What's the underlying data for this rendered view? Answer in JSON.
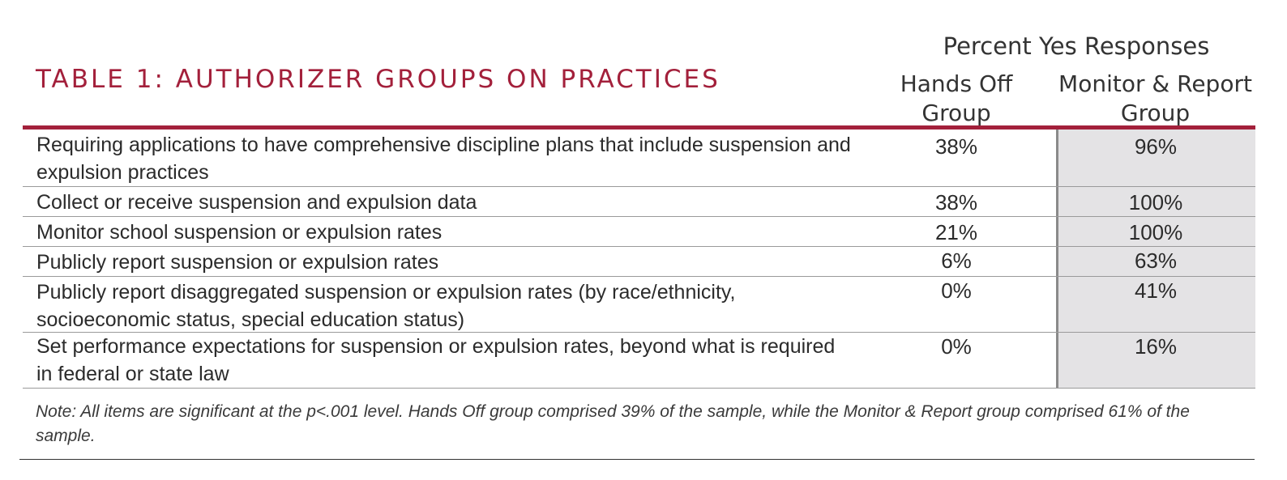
{
  "title": "TABLE 1: AUTHORIZER GROUPS ON PRACTICES",
  "header": {
    "super": "Percent Yes Responses",
    "col1": "Hands Off Group",
    "col2": "Monitor & Report Group"
  },
  "rows": [
    {
      "label": "Requiring applications to have comprehensive discipline plans that include suspension and expulsion practices",
      "hands_off": "38%",
      "monitor_report": "96%"
    },
    {
      "label": "Collect or receive suspension and expulsion data",
      "hands_off": "38%",
      "monitor_report": "100%"
    },
    {
      "label": "Monitor school suspension or expulsion rates",
      "hands_off": "21%",
      "monitor_report": "100%"
    },
    {
      "label": "Publicly report suspension or expulsion rates",
      "hands_off": "6%",
      "monitor_report": "63%"
    },
    {
      "label": "Publicly report disaggregated suspension or expulsion rates (by race/ethnicity, socioeconomic status, special education status)",
      "hands_off": "0%",
      "monitor_report": "41%"
    },
    {
      "label": "Set performance expectations for suspension or expulsion rates, beyond what is required in federal or state law",
      "hands_off": "0%",
      "monitor_report": "16%"
    }
  ],
  "note": "Note: All items are significant at the p<.001 level. Hands Off group comprised 39% of the sample, while the Monitor & Report group comprised 61% of the sample.",
  "colors": {
    "accent": "#a3203b",
    "shade": "#e4e3e5"
  }
}
